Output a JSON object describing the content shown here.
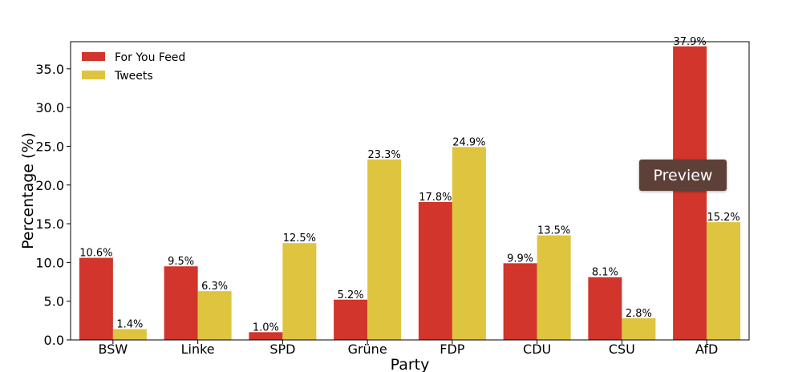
{
  "chart_data": {
    "type": "bar",
    "xlabel": "Party",
    "ylabel": "Percentage (%)",
    "ylim": [
      0,
      38.5
    ],
    "yticks": [
      "0.0",
      "5.0",
      "10.0",
      "15.0",
      "20.0",
      "25.0",
      "30.0",
      "35.0"
    ],
    "categories": [
      "BSW",
      "Linke",
      "SPD",
      "Grüne",
      "FDP",
      "CDU",
      "CSU",
      "AfD"
    ],
    "legend_position": "top-left",
    "grid": false,
    "series": [
      {
        "name": "For You Feed",
        "color": "#d1352b",
        "values": [
          10.6,
          9.5,
          1.0,
          5.2,
          17.8,
          9.9,
          8.1,
          37.9
        ],
        "labels": [
          "10.6%",
          "9.5%",
          "1.0%",
          "5.2%",
          "17.8%",
          "9.9%",
          "8.1%",
          "37.9%"
        ]
      },
      {
        "name": "Tweets",
        "color": "#dfc43f",
        "values": [
          1.4,
          6.3,
          12.5,
          23.3,
          24.9,
          13.5,
          2.8,
          15.2
        ],
        "labels": [
          "1.4%",
          "6.3%",
          "12.5%",
          "23.3%",
          "24.9%",
          "13.5%",
          "2.8%",
          "15.2%"
        ]
      }
    ]
  },
  "overlay": {
    "preview_label": "Preview",
    "preview_color": "#5d4038"
  }
}
